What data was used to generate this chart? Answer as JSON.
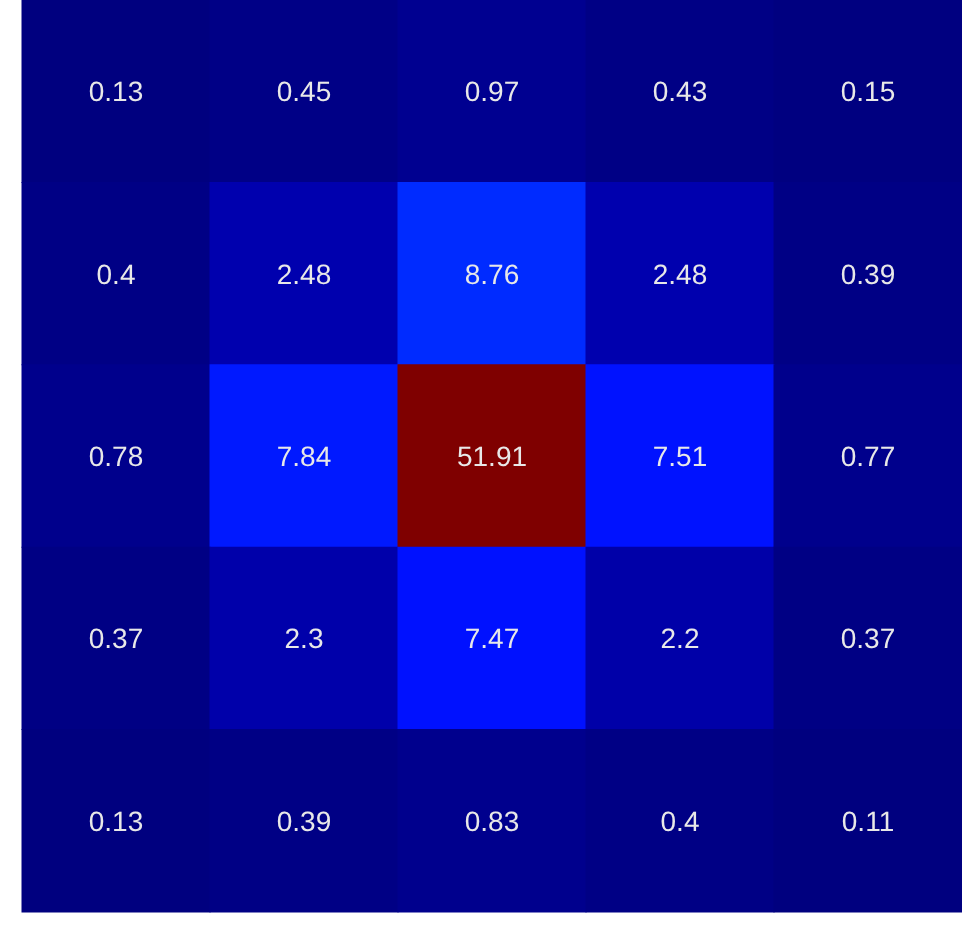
{
  "chart_data": {
    "type": "heatmap",
    "categories": [
      null,
      null,
      null,
      null,
      null
    ],
    "y_categories": [
      null,
      null,
      null,
      null,
      null
    ],
    "cells": [
      [
        0.13,
        0.45,
        0.97,
        0.43,
        0.15
      ],
      [
        0.4,
        2.48,
        8.76,
        2.48,
        0.39
      ],
      [
        0.78,
        7.84,
        51.91,
        7.51,
        0.77
      ],
      [
        0.37,
        2.3,
        7.47,
        2.2,
        0.37
      ],
      [
        0.13,
        0.39,
        0.83,
        0.4,
        0.11
      ]
    ],
    "data_labels": true
  }
}
